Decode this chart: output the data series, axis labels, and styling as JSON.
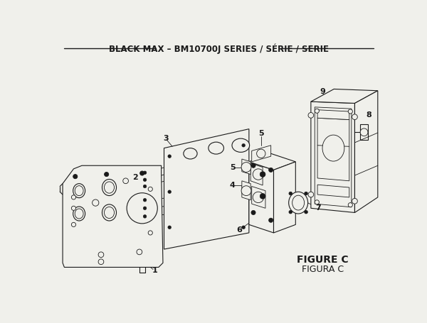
{
  "title": "BLACK MAX – BM10700J SERIES / SÉRIE / SERIE",
  "figure_label": "FIGURE C",
  "figura_label": "FIGURA C",
  "bg_color": "#f0f0eb",
  "line_color": "#1a1a1a",
  "title_fontsize": 8.5,
  "label_fontsize": 8,
  "figure_label_fontsize": 10
}
